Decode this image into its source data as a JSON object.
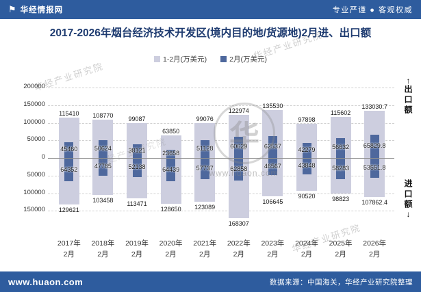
{
  "header": {
    "brand": "华经情报网",
    "logo_icon": "⚑",
    "slogan": "专业严谨 ● 客观权威"
  },
  "title": "2017-2026年烟台经济技术开发区(境内目的地/货源地)2月进、出口额",
  "legend": [
    {
      "label": "1-2月(万美元)",
      "color": "#CDCEDF"
    },
    {
      "label": "2月(万美元)",
      "color": "#4E689D"
    }
  ],
  "right_axis": {
    "up_icon": "↑",
    "top": "出口额",
    "bottom": "进口额",
    "down_icon": "↓"
  },
  "watermark": {
    "text": "华经产业研究院",
    "emblem_char": "华",
    "site": "www.huaon.com"
  },
  "footer": {
    "site": "www.huaon.com",
    "source": "数据来源：中国海关，华经产业研究院整理"
  },
  "chart_data": {
    "type": "bar",
    "title": "2017-2026年烟台经济技术开发区(境内目的地/货源地)2月进、出口额",
    "unit": "万美元",
    "categories": [
      "2017年",
      "2018年",
      "2019年",
      "2020年",
      "2021年",
      "2022年",
      "2023年",
      "2024年",
      "2025年",
      "2026年"
    ],
    "category_sub": "2月",
    "yticks": [
      200000,
      150000,
      100000,
      50000,
      0,
      -50000,
      -100000,
      -150000
    ],
    "ylim": [
      -180000,
      200000
    ],
    "grid": "dashed",
    "legend_position": "top",
    "colors": {
      "total": "#CDCEDF",
      "feb": "#4E689D"
    },
    "series": [
      {
        "key": "export-total",
        "name": "1-2月出口额(万美元)",
        "legend": "1-2月(万美元)",
        "direction": "up",
        "role": "total",
        "values": [
          115410,
          108770,
          99087,
          63850,
          99076,
          122974,
          135530,
          97898,
          115602,
          133030.7
        ]
      },
      {
        "key": "export-feb",
        "name": "2月出口额(万美元)",
        "legend": "2月(万美元)",
        "direction": "up",
        "role": "feb",
        "values": [
          45460,
          50624,
          38121,
          23658,
          51128,
          60629,
          62537,
          42279,
          56632,
          65829.8
        ]
      },
      {
        "key": "import-feb",
        "name": "2月进口额(万美元)",
        "legend": "2月(万美元)",
        "direction": "down",
        "role": "feb",
        "values": [
          64352,
          47785,
          52138,
          64439,
          57737,
          62858,
          46567,
          43848,
          58283,
          53551.8
        ]
      },
      {
        "key": "import-total",
        "name": "1-2月进口额(万美元)",
        "legend": "1-2月(万美元)",
        "direction": "down",
        "role": "total",
        "values": [
          129621,
          103458,
          113471,
          128650,
          123089,
          168307,
          106645,
          90520,
          98823,
          107862.4
        ]
      }
    ]
  }
}
